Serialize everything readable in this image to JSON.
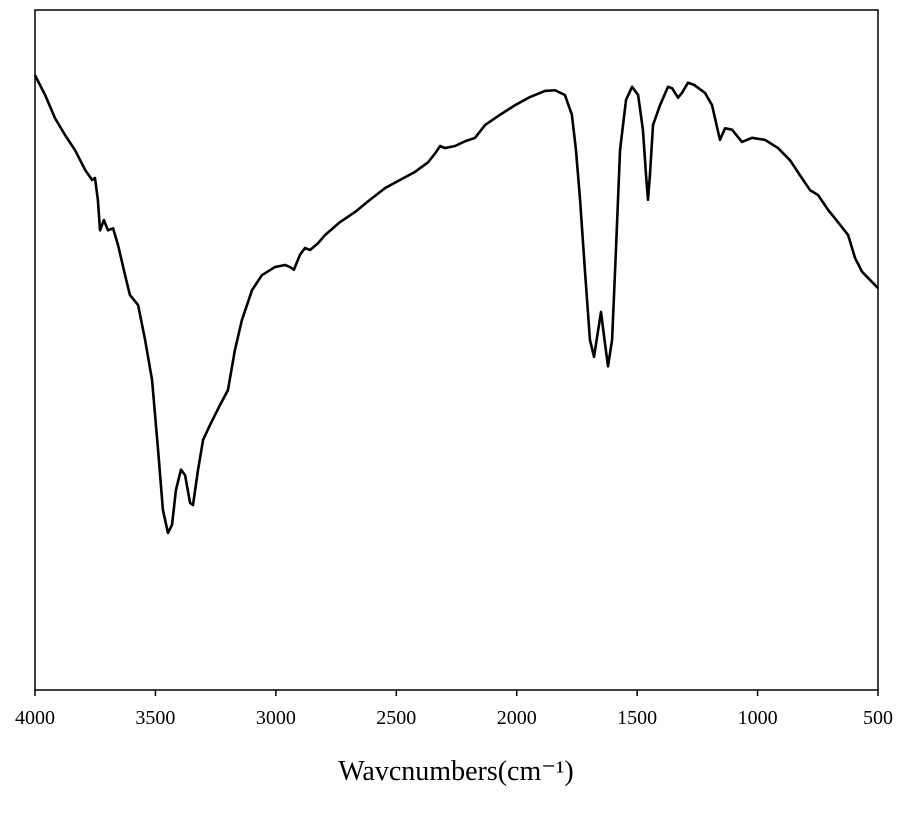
{
  "chart_data": {
    "type": "line",
    "x_label": "Wavcnumbers(cm⁻¹)",
    "color": "#000000",
    "xlim": [
      4000,
      500
    ],
    "ylim": [
      0,
      100
    ],
    "xticks": [
      4000,
      3500,
      3000,
      2500,
      2000,
      1500,
      1000,
      500
    ],
    "x": [
      4000,
      3958,
      3917,
      3875,
      3834,
      3792,
      3763,
      3751,
      3739,
      3730,
      3714,
      3697,
      3676,
      3655,
      3626,
      3606,
      3572,
      3543,
      3514,
      3489,
      3469,
      3448,
      3431,
      3415,
      3394,
      3377,
      3356,
      3344,
      3323,
      3302,
      3273,
      3232,
      3199,
      3170,
      3141,
      3099,
      3058,
      3004,
      2962,
      2941,
      2925,
      2900,
      2879,
      2858,
      2825,
      2796,
      2734,
      2671,
      2609,
      2547,
      2485,
      2422,
      2368,
      2339,
      2318,
      2298,
      2256,
      2214,
      2173,
      2131,
      2069,
      2007,
      1945,
      1883,
      1841,
      1800,
      1771,
      1754,
      1737,
      1717,
      1696,
      1679,
      1662,
      1650,
      1638,
      1621,
      1604,
      1588,
      1571,
      1546,
      1521,
      1496,
      1476,
      1463,
      1455,
      1447,
      1434,
      1405,
      1372,
      1355,
      1330,
      1314,
      1289,
      1264,
      1218,
      1189,
      1164,
      1156,
      1135,
      1106,
      1065,
      1023,
      969,
      915,
      865,
      824,
      782,
      749,
      707,
      666,
      624,
      595,
      566,
      533,
      500
    ],
    "values": [
      90.4,
      87.5,
      84.1,
      81.6,
      79.4,
      76.5,
      75.0,
      75.3,
      72.1,
      67.6,
      69.1,
      67.6,
      67.9,
      65.4,
      61.0,
      58.1,
      56.6,
      51.5,
      45.6,
      35.3,
      26.5,
      23.1,
      24.3,
      29.4,
      32.4,
      31.6,
      27.5,
      27.2,
      32.4,
      36.8,
      39.0,
      41.9,
      44.1,
      50.0,
      54.4,
      58.8,
      61.0,
      62.2,
      62.5,
      62.2,
      61.8,
      64.0,
      65.0,
      64.7,
      65.7,
      66.9,
      68.8,
      70.3,
      72.1,
      73.8,
      75.0,
      76.2,
      77.6,
      78.9,
      80.0,
      79.7,
      80.0,
      80.7,
      81.2,
      83.1,
      84.6,
      86.0,
      87.2,
      88.1,
      88.2,
      87.5,
      84.6,
      79.4,
      72.1,
      61.8,
      51.5,
      49.0,
      52.9,
      55.6,
      52.2,
      47.6,
      51.5,
      64.7,
      79.4,
      86.8,
      88.7,
      87.5,
      82.4,
      75.7,
      72.1,
      75.7,
      83.1,
      86.0,
      88.7,
      88.5,
      87.1,
      87.8,
      89.3,
      89.0,
      87.8,
      86.0,
      82.1,
      80.9,
      82.6,
      82.4,
      80.6,
      81.2,
      80.9,
      79.7,
      77.9,
      75.7,
      73.5,
      72.8,
      70.6,
      68.8,
      66.9,
      63.5,
      61.5,
      60.3,
      59.1
    ]
  }
}
